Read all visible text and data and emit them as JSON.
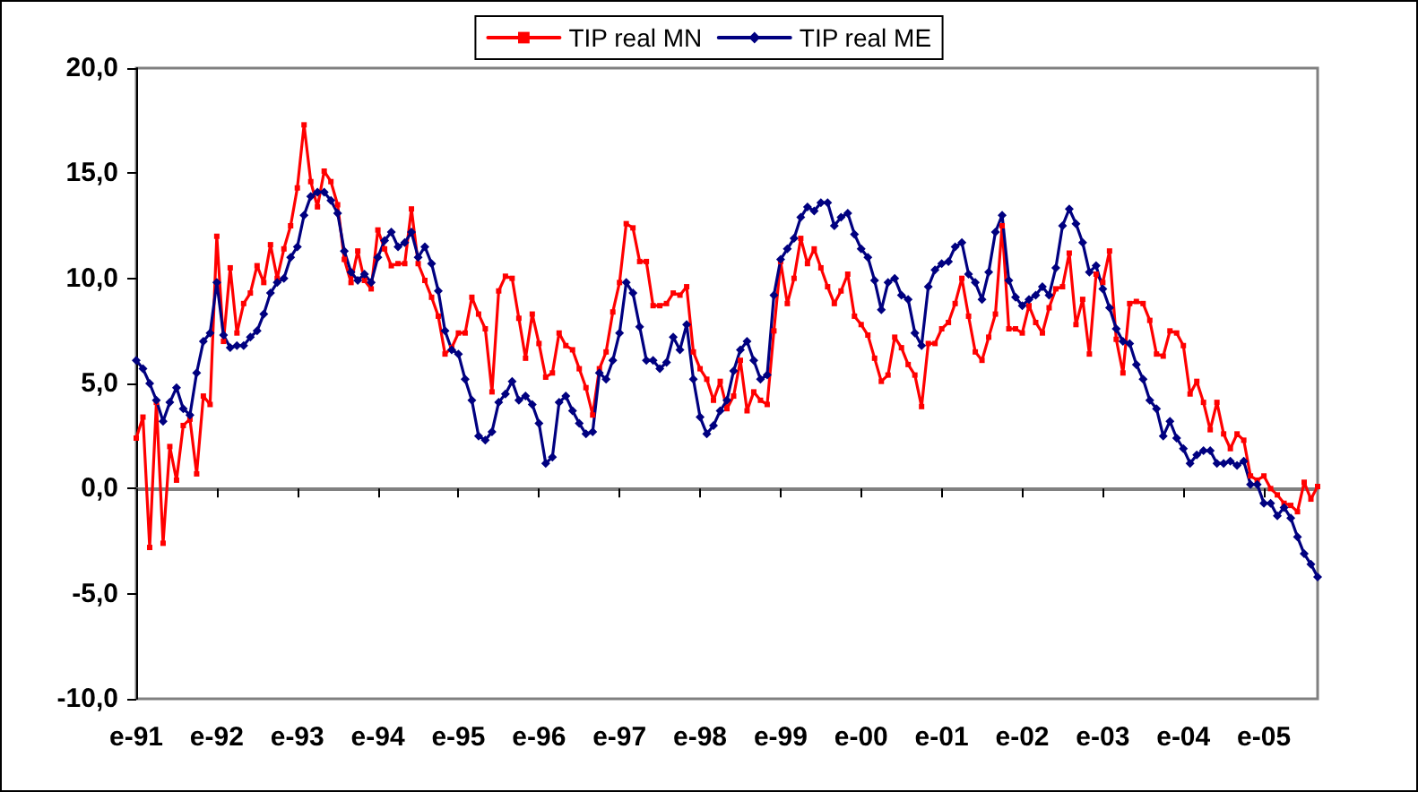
{
  "chart_data": {
    "type": "line",
    "categories": [
      "e-91",
      null,
      null,
      null,
      null,
      null,
      null,
      null,
      null,
      null,
      null,
      null,
      "e-92",
      null,
      null,
      null,
      null,
      null,
      null,
      null,
      null,
      null,
      null,
      null,
      "e-93",
      null,
      null,
      null,
      null,
      null,
      null,
      null,
      null,
      null,
      null,
      null,
      "e-94",
      null,
      null,
      null,
      null,
      null,
      null,
      null,
      null,
      null,
      null,
      null,
      "e-95",
      null,
      null,
      null,
      null,
      null,
      null,
      null,
      null,
      null,
      null,
      null,
      "e-96",
      null,
      null,
      null,
      null,
      null,
      null,
      null,
      null,
      null,
      null,
      null,
      "e-97",
      null,
      null,
      null,
      null,
      null,
      null,
      null,
      null,
      null,
      null,
      null,
      "e-98",
      null,
      null,
      null,
      null,
      null,
      null,
      null,
      null,
      null,
      null,
      null,
      "e-99",
      null,
      null,
      null,
      null,
      null,
      null,
      null,
      null,
      null,
      null,
      null,
      "e-00",
      null,
      null,
      null,
      null,
      null,
      null,
      null,
      null,
      null,
      null,
      null,
      "e-01",
      null,
      null,
      null,
      null,
      null,
      null,
      null,
      null,
      null,
      null,
      null,
      "e-02",
      null,
      null,
      null,
      null,
      null,
      null,
      null,
      null,
      null,
      null,
      null,
      "e-03",
      null,
      null,
      null,
      null,
      null,
      null,
      null,
      null,
      null,
      null,
      null,
      "e-04",
      null,
      null,
      null,
      null,
      null,
      null,
      null,
      null,
      null,
      null,
      null,
      "e-05",
      null,
      null,
      null,
      null,
      null,
      null,
      null,
      null
    ],
    "series": [
      {
        "name": "TIP real MN",
        "color": "#ff0000",
        "marker": "square",
        "values": [
          2.4,
          3.4,
          -2.8,
          4.1,
          -2.6,
          2.0,
          0.4,
          3.0,
          3.3,
          0.7,
          4.4,
          4.0,
          12.0,
          7.0,
          10.5,
          7.4,
          8.8,
          9.3,
          10.6,
          9.8,
          11.6,
          10.0,
          11.4,
          12.5,
          14.3,
          17.3,
          14.6,
          13.4,
          15.1,
          14.6,
          13.5,
          10.9,
          9.8,
          11.3,
          9.9,
          9.5,
          12.3,
          11.4,
          10.6,
          10.7,
          10.7,
          13.3,
          10.7,
          9.9,
          9.1,
          8.2,
          6.4,
          6.7,
          7.4,
          7.4,
          9.1,
          8.3,
          7.6,
          4.6,
          9.4,
          10.1,
          10.0,
          8.1,
          6.2,
          8.3,
          6.9,
          5.3,
          5.5,
          7.4,
          6.8,
          6.6,
          5.7,
          4.8,
          3.5,
          5.7,
          6.5,
          8.4,
          9.8,
          12.6,
          12.4,
          10.8,
          10.8,
          8.7,
          8.7,
          8.8,
          9.3,
          9.2,
          9.6,
          6.5,
          5.7,
          5.2,
          4.2,
          5.1,
          3.8,
          4.4,
          6.1,
          3.7,
          4.6,
          4.2,
          4.0,
          7.5,
          10.8,
          8.8,
          10.0,
          11.9,
          10.7,
          11.4,
          10.5,
          9.6,
          8.8,
          9.4,
          10.2,
          8.2,
          7.8,
          7.3,
          6.2,
          5.1,
          5.4,
          7.2,
          6.7,
          5.9,
          5.4,
          3.9,
          6.9,
          6.9,
          7.6,
          7.9,
          8.8,
          10.0,
          8.2,
          6.5,
          6.1,
          7.2,
          8.3,
          12.5,
          7.6,
          7.6,
          7.4,
          8.7,
          7.9,
          7.4,
          8.6,
          9.5,
          9.6,
          11.2,
          7.8,
          9.0,
          6.4,
          10.2,
          9.8,
          11.3,
          7.1,
          5.5,
          8.8,
          8.9,
          8.8,
          8.0,
          6.4,
          6.3,
          7.5,
          7.4,
          6.8,
          4.5,
          5.1,
          4.1,
          2.8,
          4.1,
          2.6,
          1.9,
          2.6,
          2.3,
          0.6,
          0.4,
          0.6,
          0.0,
          -0.3,
          -0.7,
          -0.8,
          -1.1,
          0.3,
          -0.5,
          0.1
        ]
      },
      {
        "name": "TIP real ME",
        "color": "#000080",
        "marker": "diamond",
        "values": [
          6.1,
          5.7,
          5.0,
          4.2,
          3.2,
          4.1,
          4.8,
          3.8,
          3.5,
          5.5,
          7.0,
          7.4,
          9.8,
          7.3,
          6.7,
          6.8,
          6.8,
          7.2,
          7.5,
          8.3,
          9.3,
          9.8,
          10.0,
          11.0,
          11.5,
          13.0,
          13.9,
          14.1,
          14.1,
          13.7,
          13.1,
          11.3,
          10.3,
          9.9,
          10.2,
          9.8,
          11.0,
          11.8,
          12.2,
          11.5,
          11.7,
          12.2,
          11.0,
          11.5,
          10.7,
          9.4,
          7.5,
          6.6,
          6.4,
          5.2,
          4.2,
          2.5,
          2.3,
          2.7,
          4.1,
          4.5,
          5.1,
          4.2,
          4.4,
          4.0,
          3.1,
          1.2,
          1.5,
          4.1,
          4.4,
          3.7,
          3.1,
          2.6,
          2.7,
          5.5,
          5.2,
          6.1,
          7.4,
          9.8,
          9.3,
          7.7,
          6.1,
          6.1,
          5.7,
          6.0,
          7.2,
          6.6,
          7.8,
          5.2,
          3.4,
          2.6,
          3.0,
          3.7,
          4.2,
          5.6,
          6.6,
          7.0,
          6.1,
          5.2,
          5.4,
          9.2,
          10.9,
          11.4,
          11.9,
          12.9,
          13.4,
          13.2,
          13.6,
          13.6,
          12.5,
          12.9,
          13.1,
          12.1,
          11.4,
          11.0,
          9.9,
          8.5,
          9.8,
          10.0,
          9.2,
          9.0,
          7.4,
          6.8,
          9.6,
          10.4,
          10.7,
          10.8,
          11.5,
          11.7,
          10.2,
          9.8,
          9.0,
          10.3,
          12.2,
          13.0,
          9.9,
          9.1,
          8.7,
          9.0,
          9.2,
          9.6,
          9.2,
          10.5,
          12.5,
          13.3,
          12.6,
          11.7,
          10.3,
          10.6,
          9.5,
          8.6,
          7.6,
          7.0,
          6.9,
          5.9,
          5.2,
          4.2,
          3.8,
          2.5,
          3.2,
          2.4,
          1.9,
          1.2,
          1.6,
          1.8,
          1.8,
          1.2,
          1.2,
          1.3,
          1.1,
          1.3,
          0.2,
          0.2,
          -0.7,
          -0.7,
          -1.3,
          -0.9,
          -1.4,
          -2.3,
          -3.1,
          -3.6,
          -4.2
        ]
      }
    ],
    "ylim": [
      -10,
      20
    ],
    "yticks": [
      {
        "value": -10,
        "label": "-10,0"
      },
      {
        "value": -5,
        "label": "-5,0"
      },
      {
        "value": 0,
        "label": "0,0"
      },
      {
        "value": 5,
        "label": "5,0"
      },
      {
        "value": 10,
        "label": "10,0"
      },
      {
        "value": 15,
        "label": "15,0"
      },
      {
        "value": 20,
        "label": "20,0"
      }
    ],
    "legend": "top",
    "line_style": "solid"
  }
}
